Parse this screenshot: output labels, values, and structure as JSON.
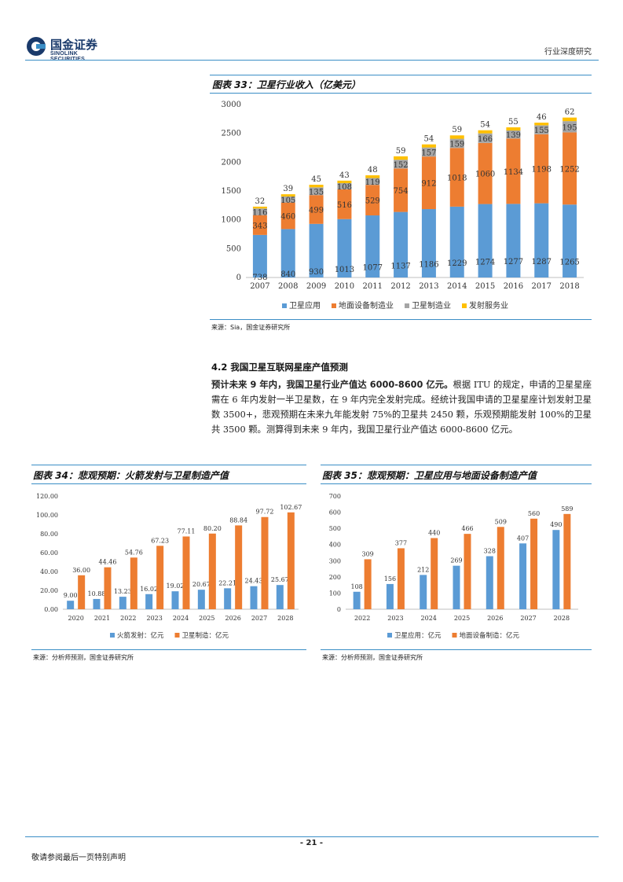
{
  "header": {
    "logo_cn": "国金证券",
    "logo_en": "SINOLINK SECURITIES",
    "report_type": "行业深度研究"
  },
  "figure33": {
    "label": "图表 33：卫星行业收入（亿美元）",
    "source": "来源：Sia，国金证券研究所"
  },
  "section": {
    "title": "4.2 我国卫星互联网星座产值预测",
    "lead": "预计未来 9 年内，我国卫星行业产值达 6000-8600 亿元。",
    "body": "根据 ITU 的规定，申请的卫星星座需在 6 年内发射一半卫星数，在 9 年内完全发射完成。经统计我国申请的卫星星座计划发射卫星数 3500+，悲观预期在未来九年能发射 75%的卫星共 2450 颗，乐观预期能发射 100%的卫星共 3500 颗。测算得到未来 9 年内，我国卫星行业产值达 6000-8600 亿元。"
  },
  "figure34": {
    "label": "图表 34：悲观预期：火箭发射与卫星制造产值",
    "source": "来源：分析师预测，国金证券研究所"
  },
  "figure35": {
    "label": "图表 35：悲观预期：卫星应用与地面设备制造产值",
    "source": "来源：分析师预测，国金证券研究所"
  },
  "footer": {
    "page": "- 21 -",
    "disclaimer": "敬请参阅最后一页特别声明"
  },
  "chart_data": [
    {
      "id": "fig33",
      "type": "bar",
      "stacked": true,
      "categories": [
        "2007",
        "2008",
        "2009",
        "2010",
        "2011",
        "2012",
        "2013",
        "2014",
        "2015",
        "2016",
        "2017",
        "2018"
      ],
      "series": [
        {
          "name": "卫星应用",
          "color": "#5b9bd5",
          "values": [
            738,
            840,
            930,
            1013,
            1077,
            1137,
            1186,
            1229,
            1274,
            1277,
            1287,
            1265
          ]
        },
        {
          "name": "地面设备制造业",
          "color": "#ed7d31",
          "values": [
            343,
            460,
            499,
            516,
            529,
            754,
            912,
            1018,
            1060,
            1134,
            1198,
            1252
          ]
        },
        {
          "name": "卫星制造业",
          "color": "#a5a5a5",
          "values": [
            116,
            105,
            135,
            108,
            119,
            152,
            157,
            159,
            166,
            139,
            155,
            195
          ]
        },
        {
          "name": "发射服务业",
          "color": "#ffc000",
          "values": [
            32,
            39,
            45,
            43,
            48,
            59,
            54,
            59,
            54,
            55,
            46,
            62
          ]
        }
      ],
      "ylim": [
        0,
        3000
      ],
      "yticks": [
        0,
        500,
        1000,
        1500,
        2000,
        2500,
        3000
      ],
      "legend": "bottom"
    },
    {
      "id": "fig34",
      "type": "bar",
      "categories": [
        "2020",
        "2021",
        "2022",
        "2023",
        "2024",
        "2025",
        "2026",
        "2027",
        "2028"
      ],
      "series": [
        {
          "name": "火箭发射：亿元",
          "color": "#5b9bd5",
          "values": [
            9.0,
            10.88,
            13.23,
            16.02,
            19.02,
            20.67,
            22.21,
            24.43,
            25.67
          ]
        },
        {
          "name": "卫星制造：亿元",
          "color": "#ed7d31",
          "values": [
            36.0,
            44.46,
            54.76,
            67.23,
            77.11,
            80.2,
            88.84,
            97.72,
            102.67
          ]
        }
      ],
      "ylim": [
        0,
        120
      ],
      "yticks": [
        "0.00",
        "20.00",
        "40.00",
        "60.00",
        "80.00",
        "100.00",
        "120.00"
      ],
      "legend": "bottom"
    },
    {
      "id": "fig35",
      "type": "bar",
      "categories": [
        "2022",
        "2023",
        "2024",
        "2025",
        "2026",
        "2027",
        "2028"
      ],
      "series": [
        {
          "name": "卫星应用：亿元",
          "color": "#5b9bd5",
          "values": [
            108,
            156,
            212,
            269,
            328,
            407,
            490
          ]
        },
        {
          "name": "地面设备制造：亿元",
          "color": "#ed7d31",
          "values": [
            309,
            377,
            440,
            466,
            509,
            560,
            589
          ]
        }
      ],
      "ylim": [
        0,
        700
      ],
      "yticks": [
        "0",
        "100",
        "200",
        "300",
        "400",
        "500",
        "600",
        "700"
      ],
      "legend": "bottom"
    }
  ]
}
